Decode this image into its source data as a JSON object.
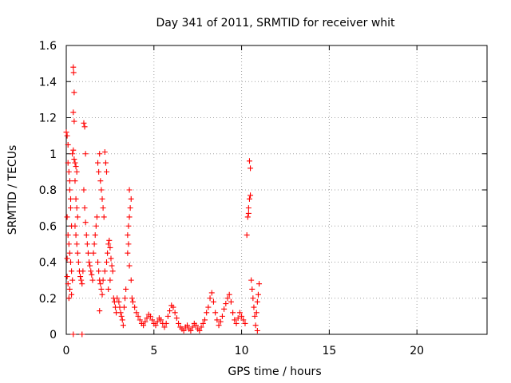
{
  "chart_data": {
    "type": "scatter",
    "title": "Day 341 of 2011, SRMTID for receiver whit",
    "xlabel": "GPS time / hours",
    "ylabel": "SRMTID / TECUs",
    "xlim": [
      0,
      24
    ],
    "ylim": [
      0,
      1.6
    ],
    "x_ticks": [
      0,
      5,
      10,
      15,
      20
    ],
    "x_tick_labels": [
      "0",
      "5",
      "10",
      "15",
      "20"
    ],
    "y_ticks": [
      0,
      0.2,
      0.4,
      0.6,
      0.8,
      1,
      1.2,
      1.4,
      1.6
    ],
    "y_tick_labels": [
      "0",
      "0.2",
      "0.4",
      "0.6",
      "0.8",
      "1",
      "1.2",
      "1.4",
      "1.6"
    ],
    "grid": true,
    "marker": "+",
    "colors": {
      "series": "#ff0000",
      "grid": "#a0a0a0",
      "axes": "#000000"
    },
    "series": [
      {
        "name": "SRMTID",
        "points": [
          [
            0.0,
            1.12
          ],
          [
            0.05,
            1.1
          ],
          [
            0.1,
            1.05
          ],
          [
            0.1,
            0.95
          ],
          [
            0.15,
            0.9
          ],
          [
            0.2,
            0.85
          ],
          [
            0.2,
            0.8
          ],
          [
            0.25,
            0.75
          ],
          [
            0.05,
            0.65
          ],
          [
            0.1,
            0.55
          ],
          [
            0.15,
            0.5
          ],
          [
            0.2,
            0.45
          ],
          [
            0.25,
            0.4
          ],
          [
            0.3,
            0.35
          ],
          [
            0.35,
            0.3
          ],
          [
            0.1,
            0.28
          ],
          [
            0.2,
            0.25
          ],
          [
            0.3,
            0.22
          ],
          [
            0.15,
            0.2
          ],
          [
            0.05,
            0.32
          ],
          [
            0.05,
            0.42
          ],
          [
            0.3,
            0.6
          ],
          [
            0.25,
            0.7
          ],
          [
            0.35,
            1.0
          ],
          [
            0.4,
            1.02
          ],
          [
            0.45,
            0.97
          ],
          [
            0.5,
            0.95
          ],
          [
            0.55,
            0.93
          ],
          [
            0.6,
            0.9
          ],
          [
            0.4,
            1.48
          ],
          [
            0.42,
            1.45
          ],
          [
            0.45,
            1.34
          ],
          [
            0.4,
            1.23
          ],
          [
            0.45,
            1.18
          ],
          [
            0.5,
            0.85
          ],
          [
            0.55,
            0.75
          ],
          [
            0.6,
            0.7
          ],
          [
            0.65,
            0.65
          ],
          [
            0.5,
            0.6
          ],
          [
            0.55,
            0.55
          ],
          [
            0.6,
            0.5
          ],
          [
            0.65,
            0.45
          ],
          [
            0.7,
            0.4
          ],
          [
            0.75,
            0.35
          ],
          [
            0.8,
            0.32
          ],
          [
            0.85,
            0.3
          ],
          [
            0.9,
            0.28
          ],
          [
            0.95,
            0.35
          ],
          [
            0.4,
            0.0
          ],
          [
            0.9,
            0.0
          ],
          [
            1.0,
            1.17
          ],
          [
            1.05,
            1.15
          ],
          [
            1.1,
            1.0
          ],
          [
            1.0,
            0.8
          ],
          [
            1.05,
            0.7
          ],
          [
            1.1,
            0.62
          ],
          [
            1.15,
            0.55
          ],
          [
            1.2,
            0.5
          ],
          [
            1.25,
            0.45
          ],
          [
            1.3,
            0.4
          ],
          [
            1.35,
            0.38
          ],
          [
            1.4,
            0.35
          ],
          [
            1.45,
            0.33
          ],
          [
            1.5,
            0.3
          ],
          [
            1.55,
            0.45
          ],
          [
            1.6,
            0.5
          ],
          [
            1.65,
            0.55
          ],
          [
            1.7,
            0.6
          ],
          [
            1.75,
            0.65
          ],
          [
            1.8,
            0.95
          ],
          [
            1.85,
            0.9
          ],
          [
            1.9,
            1.0
          ],
          [
            1.95,
            0.85
          ],
          [
            2.0,
            0.8
          ],
          [
            2.05,
            0.75
          ],
          [
            2.1,
            0.7
          ],
          [
            2.15,
            0.65
          ],
          [
            2.2,
            1.01
          ],
          [
            2.25,
            0.95
          ],
          [
            2.3,
            0.9
          ],
          [
            1.8,
            0.4
          ],
          [
            1.85,
            0.35
          ],
          [
            1.9,
            0.3
          ],
          [
            1.95,
            0.28
          ],
          [
            2.0,
            0.25
          ],
          [
            2.05,
            0.22
          ],
          [
            1.9,
            0.13
          ],
          [
            2.1,
            0.3
          ],
          [
            2.2,
            0.35
          ],
          [
            2.3,
            0.4
          ],
          [
            2.35,
            0.45
          ],
          [
            2.4,
            0.5
          ],
          [
            2.45,
            0.52
          ],
          [
            2.5,
            0.48
          ],
          [
            2.55,
            0.42
          ],
          [
            2.6,
            0.38
          ],
          [
            2.65,
            0.35
          ],
          [
            2.5,
            0.3
          ],
          [
            2.4,
            0.25
          ],
          [
            2.7,
            0.2
          ],
          [
            2.75,
            0.18
          ],
          [
            2.8,
            0.15
          ],
          [
            2.85,
            0.12
          ],
          [
            2.9,
            0.2
          ],
          [
            3.0,
            0.18
          ],
          [
            3.05,
            0.15
          ],
          [
            3.1,
            0.12
          ],
          [
            3.15,
            0.1
          ],
          [
            3.2,
            0.08
          ],
          [
            3.25,
            0.05
          ],
          [
            3.3,
            0.15
          ],
          [
            3.35,
            0.2
          ],
          [
            3.4,
            0.25
          ],
          [
            3.5,
            0.55
          ],
          [
            3.55,
            0.6
          ],
          [
            3.6,
            0.65
          ],
          [
            3.65,
            0.7
          ],
          [
            3.7,
            0.75
          ],
          [
            3.6,
            0.8
          ],
          [
            3.5,
            0.45
          ],
          [
            3.55,
            0.5
          ],
          [
            3.6,
            0.38
          ],
          [
            3.7,
            0.3
          ],
          [
            3.75,
            0.2
          ],
          [
            3.8,
            0.18
          ],
          [
            3.9,
            0.15
          ],
          [
            4.0,
            0.12
          ],
          [
            4.1,
            0.1
          ],
          [
            4.2,
            0.08
          ],
          [
            4.3,
            0.06
          ],
          [
            4.4,
            0.05
          ],
          [
            4.5,
            0.07
          ],
          [
            4.6,
            0.09
          ],
          [
            4.7,
            0.11
          ],
          [
            4.8,
            0.1
          ],
          [
            4.9,
            0.08
          ],
          [
            5.0,
            0.06
          ],
          [
            5.1,
            0.05
          ],
          [
            5.2,
            0.07
          ],
          [
            5.3,
            0.09
          ],
          [
            5.4,
            0.08
          ],
          [
            5.5,
            0.06
          ],
          [
            5.6,
            0.04
          ],
          [
            5.7,
            0.06
          ],
          [
            5.8,
            0.1
          ],
          [
            5.9,
            0.13
          ],
          [
            6.0,
            0.16
          ],
          [
            6.1,
            0.15
          ],
          [
            6.2,
            0.12
          ],
          [
            6.3,
            0.09
          ],
          [
            6.4,
            0.06
          ],
          [
            6.5,
            0.04
          ],
          [
            6.6,
            0.03
          ],
          [
            6.7,
            0.02
          ],
          [
            6.8,
            0.04
          ],
          [
            6.9,
            0.05
          ],
          [
            7.0,
            0.03
          ],
          [
            7.1,
            0.02
          ],
          [
            7.2,
            0.04
          ],
          [
            7.3,
            0.06
          ],
          [
            7.4,
            0.05
          ],
          [
            7.5,
            0.03
          ],
          [
            7.6,
            0.02
          ],
          [
            7.7,
            0.04
          ],
          [
            7.8,
            0.06
          ],
          [
            7.9,
            0.08
          ],
          [
            8.0,
            0.12
          ],
          [
            8.1,
            0.15
          ],
          [
            8.2,
            0.2
          ],
          [
            8.3,
            0.23
          ],
          [
            8.4,
            0.18
          ],
          [
            8.5,
            0.12
          ],
          [
            8.6,
            0.08
          ],
          [
            8.7,
            0.05
          ],
          [
            8.8,
            0.07
          ],
          [
            8.9,
            0.1
          ],
          [
            9.0,
            0.14
          ],
          [
            9.1,
            0.17
          ],
          [
            9.2,
            0.2
          ],
          [
            9.3,
            0.22
          ],
          [
            9.4,
            0.18
          ],
          [
            9.5,
            0.12
          ],
          [
            9.6,
            0.08
          ],
          [
            9.7,
            0.06
          ],
          [
            9.8,
            0.09
          ],
          [
            9.9,
            0.12
          ],
          [
            10.0,
            0.1
          ],
          [
            10.1,
            0.08
          ],
          [
            10.2,
            0.06
          ],
          [
            10.3,
            0.55
          ],
          [
            10.35,
            0.65
          ],
          [
            10.4,
            0.7
          ],
          [
            10.45,
            0.75
          ],
          [
            10.5,
            0.77
          ],
          [
            10.4,
            0.67
          ],
          [
            10.45,
            0.96
          ],
          [
            10.5,
            0.92
          ],
          [
            10.55,
            0.3
          ],
          [
            10.6,
            0.25
          ],
          [
            10.65,
            0.2
          ],
          [
            10.7,
            0.15
          ],
          [
            10.75,
            0.1
          ],
          [
            10.8,
            0.05
          ],
          [
            10.85,
            0.12
          ],
          [
            10.9,
            0.18
          ],
          [
            10.95,
            0.22
          ],
          [
            11.0,
            0.28
          ],
          [
            10.9,
            0.02
          ]
        ]
      }
    ]
  }
}
